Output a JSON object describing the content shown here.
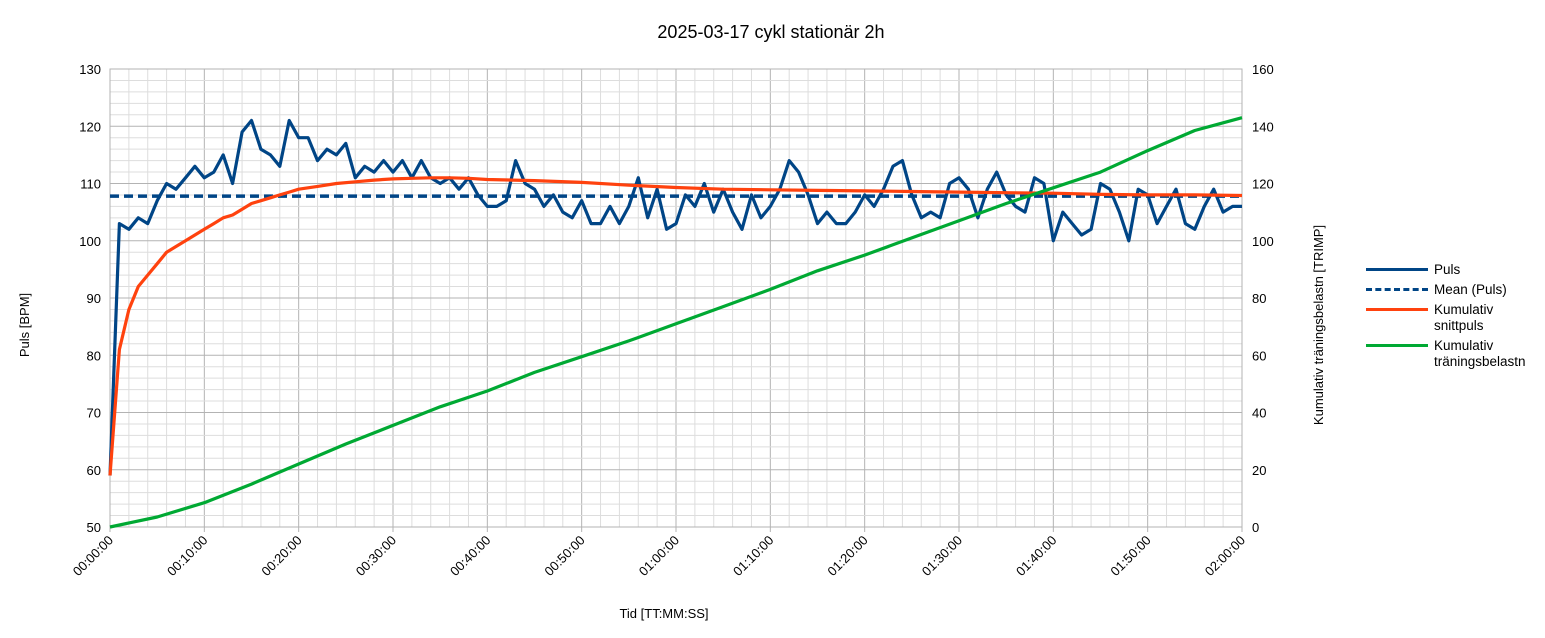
{
  "chart_data": {
    "type": "line",
    "title": "2025-03-17 cykl stationär 2h",
    "xlabel": "Tid [TT:MM:SS]",
    "ylabel": "Puls [BPM]",
    "y2label": "Kumulativ träningsbelastn [TRIMP]",
    "x_tick_labels": [
      "00:00:00",
      "00:10:00",
      "00:20:00",
      "00:30:00",
      "00:40:00",
      "00:50:00",
      "01:00:00",
      "01:10:00",
      "01:20:00",
      "01:30:00",
      "01:40:00",
      "01:50:00",
      "02:00:00"
    ],
    "xlim": [
      0,
      120
    ],
    "ylim": [
      50,
      130
    ],
    "y_ticks": [
      50,
      60,
      70,
      80,
      90,
      100,
      110,
      120,
      130
    ],
    "y2lim": [
      0,
      160
    ],
    "y2_ticks": [
      0,
      20,
      40,
      60,
      80,
      100,
      120,
      140,
      160
    ],
    "grid": true,
    "legend_position": "right",
    "series": [
      {
        "name": "Puls",
        "axis": "left",
        "color": "#004586",
        "dash": "solid",
        "x": [
          0,
          1,
          2,
          3,
          4,
          5,
          6,
          7,
          8,
          9,
          10,
          11,
          12,
          13,
          14,
          15,
          16,
          17,
          18,
          19,
          20,
          21,
          22,
          23,
          24,
          25,
          26,
          27,
          28,
          29,
          30,
          31,
          32,
          33,
          34,
          35,
          36,
          37,
          38,
          39,
          40,
          41,
          42,
          43,
          44,
          45,
          46,
          47,
          48,
          49,
          50,
          51,
          52,
          53,
          54,
          55,
          56,
          57,
          58,
          59,
          60,
          61,
          62,
          63,
          64,
          65,
          66,
          67,
          68,
          69,
          70,
          71,
          72,
          73,
          74,
          75,
          76,
          77,
          78,
          79,
          80,
          81,
          82,
          83,
          84,
          85,
          86,
          87,
          88,
          89,
          90,
          91,
          92,
          93,
          94,
          95,
          96,
          97,
          98,
          99,
          100,
          101,
          102,
          103,
          104,
          105,
          106,
          107,
          108,
          109,
          110,
          111,
          112,
          113,
          114,
          115,
          116,
          117,
          118,
          119,
          120
        ],
        "values": [
          59,
          103,
          102,
          104,
          103,
          107,
          110,
          109,
          111,
          113,
          111,
          112,
          115,
          110,
          119,
          121,
          116,
          115,
          113,
          121,
          118,
          118,
          114,
          116,
          115,
          117,
          111,
          113,
          112,
          114,
          112,
          114,
          111,
          114,
          111,
          110,
          111,
          109,
          111,
          108,
          106,
          106,
          107,
          114,
          110,
          109,
          106,
          108,
          105,
          104,
          107,
          103,
          103,
          106,
          103,
          106,
          111,
          104,
          109,
          102,
          103,
          108,
          106,
          110,
          105,
          109,
          105,
          102,
          108,
          104,
          106,
          109,
          114,
          112,
          108,
          103,
          105,
          103,
          103,
          105,
          108,
          106,
          109,
          113,
          114,
          108,
          104,
          105,
          104,
          110,
          111,
          109,
          104,
          109,
          112,
          108,
          106,
          105,
          111,
          110,
          100,
          105,
          103,
          101,
          102,
          110,
          109,
          105,
          100,
          109,
          108,
          103,
          106,
          109,
          103,
          102,
          106,
          109,
          105,
          106,
          106
        ]
      },
      {
        "name": "Mean (Puls)",
        "axis": "left",
        "color": "#004586",
        "dash": "dashed",
        "x": [
          0,
          120
        ],
        "values": [
          107.8,
          107.8
        ]
      },
      {
        "name": "Kumulativ snittpuls",
        "axis": "left",
        "color": "#ff420e",
        "dash": "solid",
        "x": [
          0,
          1,
          2,
          3,
          4,
          5,
          6,
          7,
          8,
          9,
          10,
          11,
          12,
          13,
          14,
          15,
          16,
          17,
          18,
          19,
          20,
          22,
          24,
          26,
          28,
          30,
          32,
          34,
          36,
          38,
          40,
          45,
          50,
          55,
          60,
          65,
          70,
          75,
          80,
          85,
          90,
          95,
          100,
          105,
          110,
          115,
          120
        ],
        "values": [
          59,
          81,
          88,
          92,
          94,
          96,
          98,
          99,
          100,
          101,
          102,
          103,
          104,
          104.5,
          105.5,
          106.5,
          107,
          107.5,
          108,
          108.5,
          109,
          109.5,
          110,
          110.3,
          110.6,
          110.8,
          110.9,
          111,
          111,
          110.9,
          110.7,
          110.5,
          110.2,
          109.7,
          109.3,
          109,
          108.9,
          108.8,
          108.7,
          108.6,
          108.5,
          108.4,
          108.3,
          108.1,
          108,
          108,
          107.9
        ]
      },
      {
        "name": "Kumulativ träningsbelastn",
        "axis": "right",
        "color": "#00a933",
        "dash": "solid",
        "x": [
          0,
          5,
          10,
          15,
          20,
          25,
          30,
          35,
          40,
          45,
          50,
          55,
          60,
          65,
          70,
          75,
          80,
          85,
          90,
          95,
          100,
          105,
          110,
          115,
          120
        ],
        "values": [
          0,
          3.5,
          8.5,
          15,
          22,
          29,
          35.5,
          42,
          47.5,
          54,
          59.5,
          65,
          71,
          77,
          83,
          89.5,
          95,
          101,
          107,
          113,
          118.5,
          124,
          131.5,
          138.5,
          143
        ]
      }
    ]
  }
}
